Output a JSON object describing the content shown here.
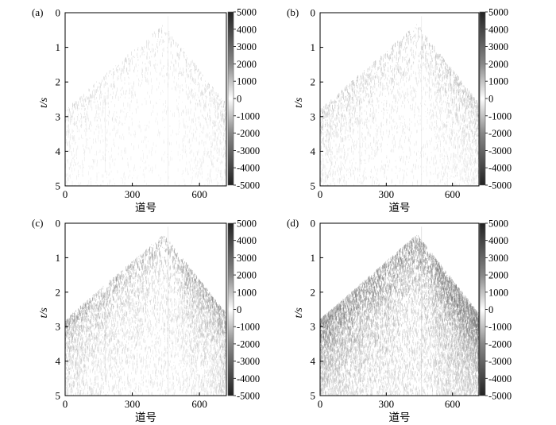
{
  "chart_data": [
    {
      "type": "heatmap",
      "panel_label": "(a)",
      "xlabel": "道号",
      "ylabel": "t/s",
      "xlim": [
        0,
        720
      ],
      "ylim": [
        5,
        0
      ],
      "xticks": [
        "0",
        "300",
        "600"
      ],
      "yticks": [
        "0",
        "1",
        "2",
        "3",
        "4",
        "5"
      ],
      "colorbar": {
        "range": [
          -5000,
          5000
        ],
        "cmap": "gray",
        "ticks": [
          "5000",
          "4000",
          "3000",
          "2000",
          "1000",
          "0",
          "-1000",
          "-2000",
          "-3000",
          "-4000",
          "-5000"
        ]
      },
      "intensity": 0.35
    },
    {
      "type": "heatmap",
      "panel_label": "(b)",
      "xlabel": "道号",
      "ylabel": "t/s",
      "xlim": [
        0,
        720
      ],
      "ylim": [
        5,
        0
      ],
      "xticks": [
        "0",
        "300",
        "600"
      ],
      "yticks": [
        "0",
        "1",
        "2",
        "3",
        "4",
        "5"
      ],
      "colorbar": {
        "range": [
          -5000,
          5000
        ],
        "cmap": "gray",
        "ticks": [
          "5000",
          "4000",
          "3000",
          "2000",
          "1000",
          "0",
          "-1000",
          "-2000",
          "-3000",
          "-4000",
          "-5000"
        ]
      },
      "intensity": 0.5
    },
    {
      "type": "heatmap",
      "panel_label": "(c)",
      "xlabel": "道号",
      "ylabel": "t/s",
      "xlim": [
        0,
        720
      ],
      "ylim": [
        5,
        0
      ],
      "xticks": [
        "0",
        "300",
        "600"
      ],
      "yticks": [
        "0",
        "1",
        "2",
        "3",
        "4",
        "5"
      ],
      "colorbar": {
        "range": [
          -5000,
          5000
        ],
        "cmap": "gray",
        "ticks": [
          "5000",
          "4000",
          "3000",
          "2000",
          "1000",
          "0",
          "-1000",
          "-2000",
          "-3000",
          "-4000",
          "-5000"
        ]
      },
      "intensity": 0.7
    },
    {
      "type": "heatmap",
      "panel_label": "(d)",
      "xlabel": "道号",
      "ylabel": "t/s",
      "xlim": [
        0,
        720
      ],
      "ylim": [
        5,
        0
      ],
      "xticks": [
        "0",
        "300",
        "600"
      ],
      "yticks": [
        "0",
        "1",
        "2",
        "3",
        "4",
        "5"
      ],
      "colorbar": {
        "range": [
          -5000,
          5000
        ],
        "cmap": "gray",
        "ticks": [
          "5000",
          "4000",
          "3000",
          "2000",
          "1000",
          "0",
          "-1000",
          "-2000",
          "-3000",
          "-4000",
          "-5000"
        ]
      },
      "intensity": 1.0
    }
  ]
}
